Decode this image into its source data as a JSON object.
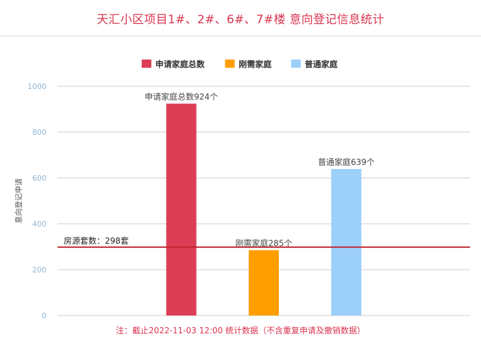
{
  "header": {
    "title": "天汇小区项目1#、2#、6#、7#楼 意向登记信息统计"
  },
  "chart_data": {
    "type": "bar",
    "ylabel": "意向登记申请",
    "ylim": [
      0,
      1000
    ],
    "yticks": [
      0,
      200,
      400,
      600,
      800,
      1000
    ],
    "categories": [
      "",
      "申请家庭总数",
      "刚需家庭",
      "普通家庭",
      ""
    ],
    "series": [
      {
        "name": "申请家庭总数",
        "color": "#dc3e55",
        "index": 1,
        "value": 924,
        "label": "申请家庭总数924个"
      },
      {
        "name": "刚需家庭",
        "color": "#ff9e00",
        "index": 2,
        "value": 285,
        "label": "刚需家庭285个"
      },
      {
        "name": "普通家庭",
        "color": "#9ccffa",
        "index": 3,
        "value": 639,
        "label": "普通家庭639个"
      }
    ],
    "reference_line": {
      "value": 298,
      "label": "房源套数：298套",
      "color": "#c0262f"
    },
    "legend_position": "top-center",
    "grid": true
  },
  "footer": {
    "note": "注：截止2022-11-03 12:00 统计数据（不含重复申请及撤销数据）"
  }
}
